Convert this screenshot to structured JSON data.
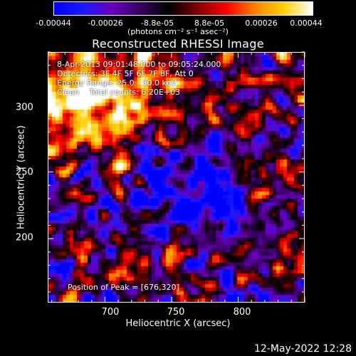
{
  "chart_data": {
    "type": "heatmap",
    "title": "Reconstructed RHESSI Image",
    "xlabel": "Heliocentric X (arcsec)",
    "ylabel": "Heliocentric Y (arcsec)",
    "xlim": [
      657,
      850
    ],
    "ylim": [
      152,
      340
    ],
    "xticks": [
      700,
      750,
      800
    ],
    "yticks": [
      200,
      250,
      300
    ],
    "colorbar": {
      "ticks": [
        "-0.00044",
        "-0.00026",
        "-8.8e-05",
        "8.8e-05",
        "0.00026",
        "0.00044"
      ],
      "units": "(photons cm⁻² s⁻¹ asec⁻²)",
      "range": [
        -0.00044,
        0.00044
      ]
    },
    "annotations": [
      "8-Apr-2013 09:01:48.000 to 09:05:24.000",
      "Detectors: 3F 4F 5F 6F 7F 8F, Att 0",
      "Energy Range: 25.0 - 50.0 keV",
      "Clean    Total counts: 6.20E+03"
    ],
    "peak_label": "Position of Peak = [676,320]",
    "peak": [
      676,
      320
    ]
  },
  "timestamp": "12-May-2022 12:28",
  "colors": {
    "background": "#000000",
    "foreground": "#ffffff",
    "colormap": [
      "#0000ff",
      "#1a1aff",
      "#6a00c0",
      "#3a0060",
      "#000000",
      "#800000",
      "#ff0000",
      "#ff8000",
      "#ffd000",
      "#ffffff"
    ]
  }
}
